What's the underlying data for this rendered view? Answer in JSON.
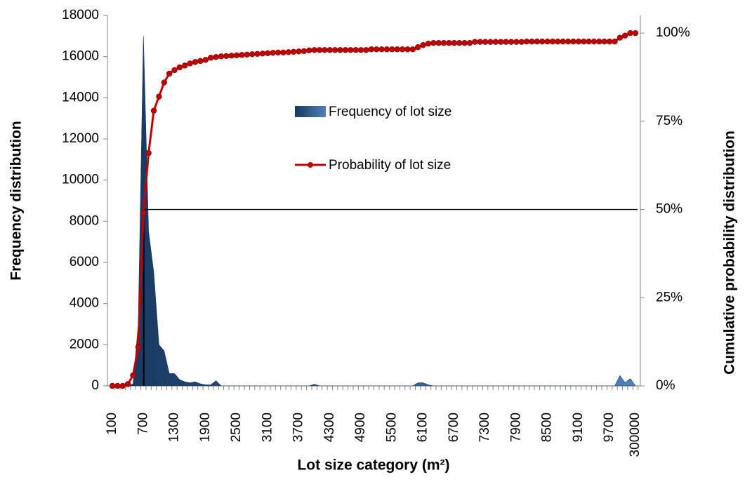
{
  "chart_data": {
    "type": "area_line",
    "x_label": "Lot size category (m²)",
    "y_label": "Frequency distribution",
    "y2_label": "Cumulative probability  distribution",
    "categories": [
      "100",
      null,
      null,
      null,
      null,
      null,
      "700",
      null,
      null,
      null,
      null,
      null,
      "1300",
      null,
      null,
      null,
      null,
      null,
      "1900",
      null,
      null,
      null,
      null,
      null,
      "2500",
      null,
      null,
      null,
      null,
      null,
      "3100",
      null,
      null,
      null,
      null,
      null,
      "3700",
      null,
      null,
      null,
      null,
      null,
      "4300",
      null,
      null,
      null,
      null,
      null,
      "4900",
      null,
      null,
      null,
      null,
      null,
      "5500",
      null,
      null,
      null,
      null,
      null,
      "6100",
      null,
      null,
      null,
      null,
      null,
      "6700",
      null,
      null,
      null,
      null,
      null,
      "7300",
      null,
      null,
      null,
      null,
      null,
      "7900",
      null,
      null,
      null,
      null,
      null,
      "8500",
      null,
      null,
      null,
      null,
      null,
      "9100",
      null,
      null,
      null,
      null,
      null,
      "9700",
      null,
      null,
      null,
      null,
      "300000"
    ],
    "series": [
      {
        "name": "Frequency of lot size",
        "color": "#4f81bd",
        "dark": "#17375e",
        "values": [
          0,
          0,
          0,
          0,
          100,
          3000,
          17000,
          7500,
          5500,
          2000,
          1700,
          600,
          600,
          300,
          200,
          150,
          200,
          100,
          50,
          50,
          250,
          0,
          0,
          0,
          0,
          0,
          0,
          0,
          0,
          0,
          0,
          0,
          0,
          0,
          0,
          0,
          0,
          0,
          0,
          80,
          0,
          0,
          0,
          0,
          0,
          0,
          0,
          0,
          0,
          0,
          0,
          0,
          0,
          0,
          0,
          0,
          0,
          0,
          0,
          150,
          150,
          50,
          0,
          0,
          0,
          0,
          0,
          0,
          0,
          0,
          0,
          0,
          0,
          0,
          0,
          0,
          0,
          0,
          0,
          0,
          0,
          0,
          0,
          0,
          0,
          0,
          0,
          0,
          0,
          0,
          0,
          0,
          0,
          0,
          0,
          0,
          0,
          0,
          500,
          150,
          350,
          0
        ]
      },
      {
        "name": "Probability of lot size",
        "color": "#c00000",
        "axis": "y2",
        "values": [
          0,
          0,
          0,
          0.5,
          3,
          11,
          49,
          66,
          78,
          82,
          86,
          88.5,
          89.5,
          90.3,
          90.8,
          91.4,
          91.8,
          92.1,
          92.4,
          93,
          93.2,
          93.4,
          93.5,
          93.6,
          93.7,
          93.8,
          93.9,
          94,
          94.1,
          94.2,
          94.3,
          94.4,
          94.5,
          94.5,
          94.6,
          94.7,
          94.8,
          94.9,
          95.1,
          95.2,
          95.2,
          95.2,
          95.2,
          95.2,
          95.2,
          95.2,
          95.2,
          95.2,
          95.2,
          95.2,
          95.4,
          95.4,
          95.4,
          95.4,
          95.4,
          95.4,
          95.4,
          95.4,
          95.4,
          96,
          96.6,
          97,
          97.2,
          97.2,
          97.2,
          97.2,
          97.2,
          97.2,
          97.2,
          97.2,
          97.5,
          97.5,
          97.5,
          97.5,
          97.5,
          97.5,
          97.5,
          97.5,
          97.5,
          97.5,
          97.6,
          97.6,
          97.6,
          97.6,
          97.6,
          97.6,
          97.6,
          97.6,
          97.6,
          97.6,
          97.6,
          97.6,
          97.6,
          97.6,
          97.6,
          97.6,
          97.6,
          97.6,
          98.7,
          99.3,
          100,
          100
        ]
      }
    ],
    "ylim": [
      0,
      18000
    ],
    "yticks": [
      0,
      2000,
      4000,
      6000,
      8000,
      10000,
      12000,
      14000,
      16000,
      18000
    ],
    "y2lim": [
      0,
      105
    ],
    "y2ticks": [
      {
        "value": 0,
        "label": "0%"
      },
      {
        "value": 25,
        "label": "25%"
      },
      {
        "value": 50,
        "label": "50%"
      },
      {
        "value": 75,
        "label": "75%"
      },
      {
        "value": 100,
        "label": "100%"
      }
    ],
    "y2_reference": 50
  }
}
